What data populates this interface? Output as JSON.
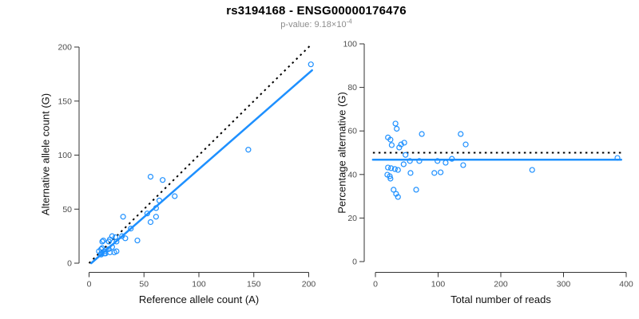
{
  "header": {
    "title": "rs3194168 - ENSG00000176476",
    "subtitle_prefix": "p-value: 9.18×10",
    "subtitle_exponent": "-4"
  },
  "colors": {
    "points": "#1E90FF",
    "fit_line": "#1E90FF",
    "reference_line": "#000000",
    "axis": "#333333",
    "tick_label": "#4d4d4d"
  },
  "chart_data": [
    {
      "type": "scatter",
      "panel": "left",
      "xlabel": "Reference allele count (A)",
      "ylabel": "Alternative allele count (G)",
      "xlim": [
        0,
        200
      ],
      "ylim": [
        0,
        200
      ],
      "xticks": [
        0,
        50,
        100,
        150,
        200
      ],
      "yticks": [
        0,
        50,
        100,
        150,
        200
      ],
      "grid": false,
      "legend": false,
      "points": [
        [
          12,
          20
        ],
        [
          13,
          21
        ],
        [
          9,
          11
        ],
        [
          11,
          13
        ],
        [
          12,
          14
        ],
        [
          18,
          20
        ],
        [
          19,
          22
        ],
        [
          21,
          25
        ],
        [
          24,
          24
        ],
        [
          31,
          43
        ],
        [
          56,
          80
        ],
        [
          67,
          77
        ],
        [
          64,
          58
        ],
        [
          30,
          25
        ],
        [
          38,
          32
        ],
        [
          53,
          46
        ],
        [
          61,
          51
        ],
        [
          78,
          62
        ],
        [
          25,
          20
        ],
        [
          11,
          9
        ],
        [
          14,
          11
        ],
        [
          18,
          13
        ],
        [
          21,
          15
        ],
        [
          11,
          8
        ],
        [
          14,
          9
        ],
        [
          15,
          9
        ],
        [
          33,
          23
        ],
        [
          56,
          38
        ],
        [
          61,
          43
        ],
        [
          145,
          105
        ],
        [
          19,
          10
        ],
        [
          23,
          10
        ],
        [
          25,
          11
        ],
        [
          44,
          21
        ],
        [
          202,
          184
        ]
      ],
      "reference_line": {
        "style": "dotted",
        "from": [
          0,
          0
        ],
        "to": [
          202,
          202
        ]
      },
      "fit_line": {
        "style": "solid",
        "from": [
          2,
          0
        ],
        "to": [
          203,
          178.5
        ]
      }
    },
    {
      "type": "scatter",
      "panel": "right",
      "xlabel": "Total number of reads",
      "ylabel": "Percentage alternative (G)",
      "xlim": [
        0,
        400
      ],
      "ylim": [
        0,
        100
      ],
      "xticks": [
        0,
        100,
        200,
        300,
        400
      ],
      "yticks": [
        0,
        20,
        40,
        60,
        80,
        100
      ],
      "grid": false,
      "legend": false,
      "points": [
        [
          32,
          63.4
        ],
        [
          34,
          61.0
        ],
        [
          20,
          57.0
        ],
        [
          24,
          56.0
        ],
        [
          26,
          53.5
        ],
        [
          38,
          52.4
        ],
        [
          41,
          53.8
        ],
        [
          46,
          54.6
        ],
        [
          48,
          49.0
        ],
        [
          74,
          58.6
        ],
        [
          136,
          58.6
        ],
        [
          144,
          53.8
        ],
        [
          122,
          47.2
        ],
        [
          55,
          46.2
        ],
        [
          70,
          46.2
        ],
        [
          99,
          46.2
        ],
        [
          112,
          45.4
        ],
        [
          140,
          44.3
        ],
        [
          45,
          44.7
        ],
        [
          20,
          43.2
        ],
        [
          25,
          42.9
        ],
        [
          31,
          42.5
        ],
        [
          36,
          42.1
        ],
        [
          19,
          39.9
        ],
        [
          23,
          39.2
        ],
        [
          24,
          38.1
        ],
        [
          56,
          40.7
        ],
        [
          94,
          40.7
        ],
        [
          104,
          41.0
        ],
        [
          250,
          42.1
        ],
        [
          29,
          33.0
        ],
        [
          33,
          31.1
        ],
        [
          36,
          29.7
        ],
        [
          65,
          33.0
        ],
        [
          386,
          47.6
        ]
      ],
      "reference_line": {
        "style": "dotted",
        "y": 50,
        "from": [
          -4,
          50
        ],
        "to": [
          392,
          50
        ]
      },
      "fit_line": {
        "style": "solid",
        "y": 46.8,
        "from": [
          -4,
          46.8
        ],
        "to": [
          392,
          46.8
        ]
      }
    }
  ]
}
